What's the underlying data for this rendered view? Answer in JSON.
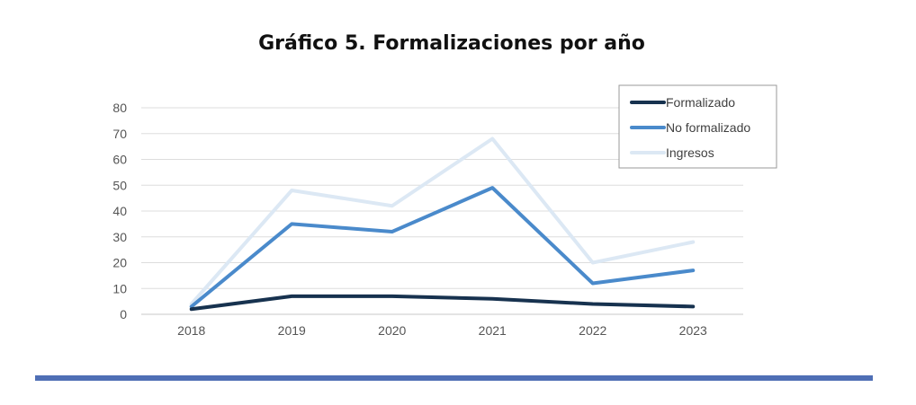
{
  "title": "Gráfico 5. Formalizaciones por año",
  "chart_data": {
    "type": "line",
    "x": [
      "2018",
      "2019",
      "2020",
      "2021",
      "2022",
      "2023"
    ],
    "y_tick_labels": [
      "0",
      "10",
      "20",
      "30",
      "40",
      "50",
      "60",
      "70",
      "80"
    ],
    "ylim": [
      0,
      80
    ],
    "grid": true,
    "legend_position": "top-right",
    "series": [
      {
        "name": "Formalizado",
        "color": "#17324f",
        "values": [
          2,
          7,
          7,
          6,
          4,
          3
        ]
      },
      {
        "name": "No formalizado",
        "color": "#4a8acb",
        "values": [
          3,
          35,
          32,
          49,
          12,
          17
        ]
      },
      {
        "name": "Ingresos",
        "color": "#dce8f4",
        "values": [
          4,
          48,
          42,
          68,
          20,
          28
        ]
      }
    ]
  }
}
